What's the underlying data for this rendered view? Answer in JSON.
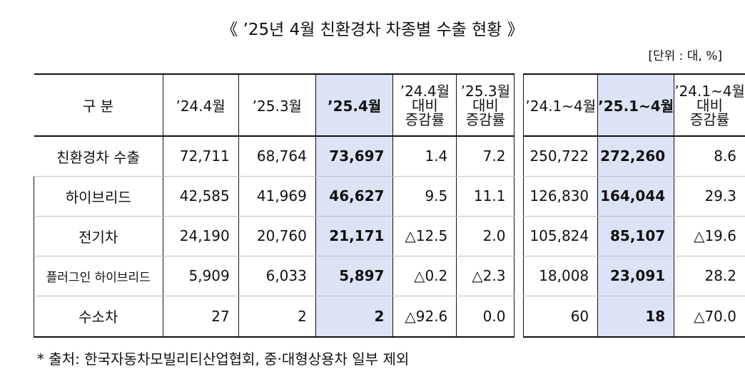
{
  "title": "《 ’25년 4월 친환경차 차종별 수출 현황 》",
  "unit": "[단위 : 대, %]",
  "note": "* 출처: 한국자동차모빌리티산업협회, 중·대형상용차 일부 제외",
  "headers": {
    "category": "구 분",
    "c1": "’24.4월",
    "c2": "’25.3월",
    "c3": "’25.4월",
    "c4": [
      "’24.4월",
      "대비",
      "증감률"
    ],
    "c5": [
      "’25.3월",
      "대비",
      "증감률"
    ],
    "c6": "’24.1~4월",
    "c7": "’25.1~4월",
    "c8": [
      "’24.1~4월",
      "대비",
      "증감률"
    ]
  },
  "rows": [
    {
      "label": "친환경차 수출",
      "v": [
        "72,711",
        "68,764",
        "73,697",
        "1.4",
        "7.2",
        "250,722",
        "272,260",
        "8.6"
      ]
    },
    {
      "label": "하이브리드",
      "v": [
        "42,585",
        "41,969",
        "46,627",
        "9.5",
        "11.1",
        "126,830",
        "164,044",
        "29.3"
      ]
    },
    {
      "label": "전기차",
      "v": [
        "24,190",
        "20,760",
        "21,171",
        "△12.5",
        "2.0",
        "105,824",
        "85,107",
        "△19.6"
      ]
    },
    {
      "label": "플러그인 하이브리드",
      "v": [
        "5,909",
        "6,033",
        "5,897",
        "△0.2",
        "△2.3",
        "18,008",
        "23,091",
        "28.2"
      ]
    },
    {
      "label": "수소차",
      "v": [
        "27",
        "2",
        "2",
        "△92.6",
        "0.0",
        "60",
        "18",
        "△70.0"
      ]
    }
  ]
}
